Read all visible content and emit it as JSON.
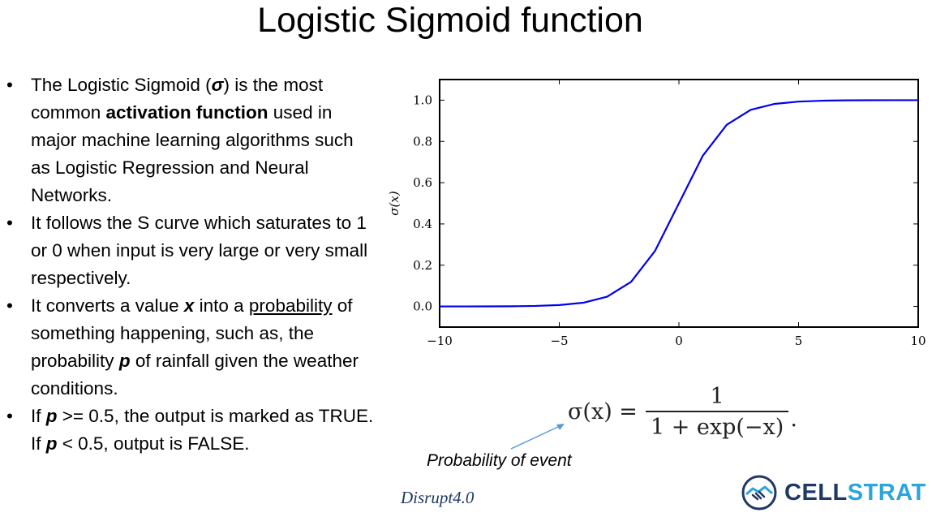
{
  "slide": {
    "title": "Logistic Sigmoid function",
    "bullets": [
      [
        {
          "t": "The Logistic Sigmoid ("
        },
        {
          "t": "σ",
          "b": true,
          "i": true
        },
        {
          "t": ") is the most common "
        },
        {
          "t": "activation function",
          "b": true
        },
        {
          "t": " used in major machine learning algorithms such as Logistic Regression and Neural Networks."
        }
      ],
      [
        {
          "t": "It follows the S curve which saturates to 1 or 0 when input is very large or very small respectively."
        }
      ],
      [
        {
          "t": "It converts a value "
        },
        {
          "t": "x",
          "b": true,
          "i": true
        },
        {
          "t": " into a "
        },
        {
          "t": "probability",
          "u": true
        },
        {
          "t": " of something happening, such as, the probability "
        },
        {
          "t": "p",
          "b": true,
          "i": true
        },
        {
          "t": " of rainfall given the weather conditions."
        }
      ],
      [
        {
          "t": "If "
        },
        {
          "t": "p",
          "b": true,
          "i": true
        },
        {
          "t": " >= 0.5, the output is marked as TRUE. If "
        },
        {
          "t": "p",
          "b": true,
          "i": true
        },
        {
          "t": " < 0.5, output is FALSE."
        }
      ]
    ],
    "formula": {
      "lhs": "σ(x) =",
      "numerator": "1",
      "denominator": "1 + exp(−x)",
      "trailing": "."
    },
    "caption": "Probability of event",
    "footer": "Disrupt4.0",
    "logo": {
      "part1": "CELL",
      "part2": "STRAT"
    }
  },
  "colors": {
    "curve": "#0000ee",
    "arrow": "#5b9bd5",
    "footer": "#1f3864",
    "logo_dark": "#1f3864",
    "logo_light": "#2aa5dd"
  },
  "chart_data": {
    "type": "line",
    "function": "logistic sigmoid 1/(1+exp(-x))",
    "series": [
      {
        "x": [
          -10,
          -9,
          -8,
          -7,
          -6,
          -5,
          -4,
          -3,
          -2,
          -1,
          0,
          1,
          2,
          3,
          4,
          5,
          6,
          7,
          8,
          9,
          10
        ],
        "values": [
          4.54e-05,
          0.000123,
          0.000335,
          0.000911,
          0.00247,
          0.00669,
          0.018,
          0.0474,
          0.119,
          0.269,
          0.5,
          0.731,
          0.881,
          0.953,
          0.982,
          0.993,
          0.9975,
          0.9991,
          0.99966,
          0.99988,
          0.99995
        ]
      }
    ],
    "xlabel": "",
    "ylabel": "σ(x)",
    "xlim": [
      -10,
      10
    ],
    "ylim": [
      -0.1,
      1.1
    ],
    "xticks": [
      -10,
      -5,
      0,
      5,
      10
    ],
    "xtick_labels": [
      "−10",
      "−5",
      "0",
      "5",
      "10"
    ],
    "yticks": [
      0.0,
      0.2,
      0.4,
      0.6,
      0.8,
      1.0
    ],
    "ytick_labels": [
      "0.0",
      "0.2",
      "0.4",
      "0.6",
      "0.8",
      "1.0"
    ],
    "grid": false,
    "legend": "none"
  }
}
